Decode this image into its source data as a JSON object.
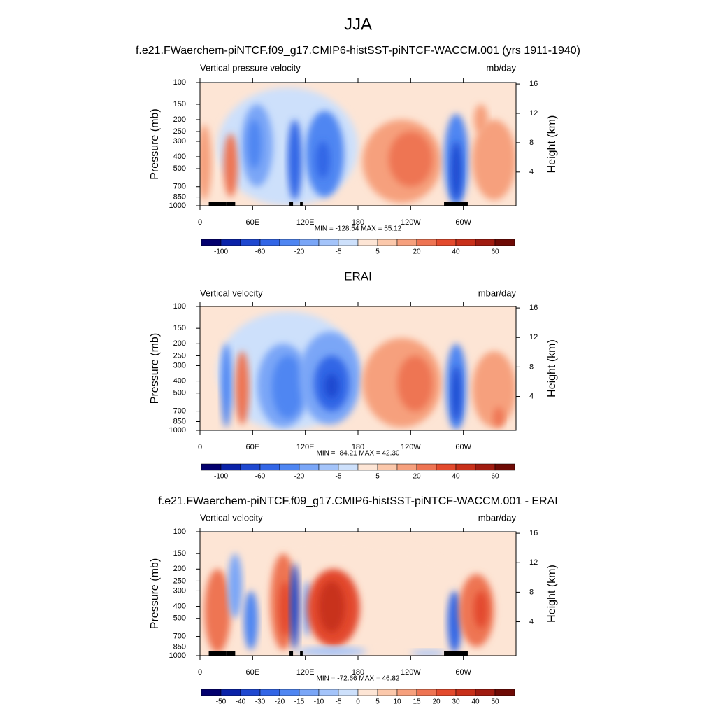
{
  "title": "JJA",
  "chart_data": [
    {
      "type": "contour",
      "title": "f.e21.FWaerchem-piNTCF.f09_g17.CMIP6-histSST-piNTCF-WACCM.001 (yrs 1911-1940)",
      "left_label": "Vertical pressure velocity",
      "right_label": "mb/day",
      "y_label": "Pressure (mb)",
      "y2_label": "Height (km)",
      "stats": "MIN = -128.54  MAX =  55.12",
      "xlim": [
        0,
        360
      ],
      "xticks": [
        0,
        {
          "value": 60,
          "label": "60E"
        },
        {
          "value": 120,
          "label": "120E"
        },
        180,
        {
          "value": 240,
          "label": "120W"
        },
        {
          "value": 300,
          "label": "60W"
        }
      ],
      "ylim": [
        1000,
        100
      ],
      "yscale": "log",
      "yticks": [
        100,
        150,
        200,
        250,
        300,
        400,
        500,
        700,
        850,
        1000
      ],
      "y2lim": [
        -0.6,
        16.2
      ],
      "y2ticks": [
        4,
        8,
        12,
        16
      ],
      "colorbar": {
        "colors": [
          "#03006e",
          "#0a22a8",
          "#1f48d0",
          "#3366e6",
          "#4f86f2",
          "#7aa6f7",
          "#a4c4fa",
          "#cde0fb",
          "#fde5d5",
          "#fbc8ab",
          "#f6a07d",
          "#ee7453",
          "#e34a2d",
          "#c8301a",
          "#a01b10",
          "#6e0a05"
        ],
        "ticks": [
          -100,
          -60,
          -20,
          -5,
          5,
          20,
          40,
          60
        ]
      }
    },
    {
      "type": "contour",
      "title": "ERAI",
      "left_label": "Vertical velocity",
      "right_label": "mbar/day",
      "y_label": "Pressure (mb)",
      "y2_label": "Height (km)",
      "stats": "MIN = -84.21  MAX = 42.30",
      "xlim": [
        0,
        360
      ],
      "xticks": [
        0,
        {
          "value": 60,
          "label": "60E"
        },
        {
          "value": 120,
          "label": "120E"
        },
        180,
        {
          "value": 240,
          "label": "120W"
        },
        {
          "value": 300,
          "label": "60W"
        }
      ],
      "ylim": [
        1000,
        100
      ],
      "yscale": "log",
      "yticks": [
        100,
        150,
        200,
        250,
        300,
        400,
        500,
        700,
        850,
        1000
      ],
      "y2lim": [
        -0.6,
        16.2
      ],
      "y2ticks": [
        4,
        8,
        12,
        16
      ],
      "colorbar": {
        "colors": [
          "#03006e",
          "#0a22a8",
          "#1f48d0",
          "#3366e6",
          "#4f86f2",
          "#7aa6f7",
          "#a4c4fa",
          "#cde0fb",
          "#fde5d5",
          "#fbc8ab",
          "#f6a07d",
          "#ee7453",
          "#e34a2d",
          "#c8301a",
          "#a01b10",
          "#6e0a05"
        ],
        "ticks": [
          -100,
          -60,
          -20,
          -5,
          5,
          20,
          40,
          60
        ]
      }
    },
    {
      "type": "contour",
      "title": "f.e21.FWaerchem-piNTCF.f09_g17.CMIP6-histSST-piNTCF-WACCM.001 - ERAI",
      "left_label": "Vertical velocity",
      "right_label": "mbar/day",
      "y_label": "Pressure (mb)",
      "y2_label": "Height (km)",
      "stats": "MIN = -72.66  MAX =  46.82",
      "xlim": [
        0,
        360
      ],
      "xticks": [
        0,
        {
          "value": 60,
          "label": "60E"
        },
        {
          "value": 120,
          "label": "120E"
        },
        180,
        {
          "value": 240,
          "label": "120W"
        },
        {
          "value": 300,
          "label": "60W"
        }
      ],
      "ylim": [
        1000,
        100
      ],
      "yscale": "log",
      "yticks": [
        100,
        150,
        200,
        250,
        300,
        400,
        500,
        700,
        850,
        1000
      ],
      "y2lim": [
        -0.6,
        16.2
      ],
      "y2ticks": [
        4,
        8,
        12,
        16
      ],
      "colorbar": {
        "colors": [
          "#03006e",
          "#0a22a8",
          "#1f48d0",
          "#3366e6",
          "#4f86f2",
          "#7aa6f7",
          "#a4c4fa",
          "#cde0fb",
          "#fde5d5",
          "#fbc8ab",
          "#f6a07d",
          "#ee7453",
          "#e34a2d",
          "#c8301a",
          "#a01b10",
          "#6e0a05"
        ],
        "ticks": [
          -50,
          -40,
          -30,
          -20,
          -15,
          -10,
          -5,
          0,
          5,
          10,
          15,
          20,
          30,
          40,
          50
        ]
      }
    }
  ]
}
